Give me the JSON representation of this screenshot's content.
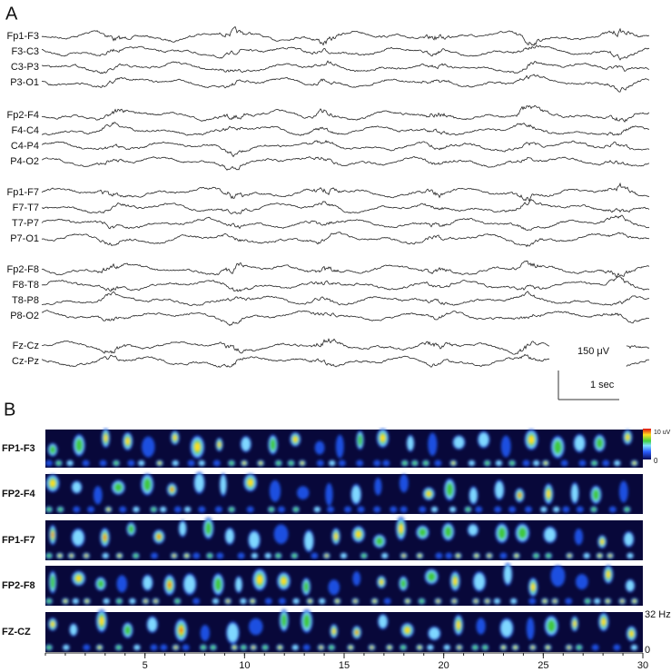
{
  "panel_a": {
    "label": "A",
    "groups": [
      [
        "Fp1-F3",
        "F3-C3",
        "C3-P3",
        "P3-O1"
      ],
      [
        "Fp2-F4",
        "F4-C4",
        "C4-P4",
        "P4-O2"
      ],
      [
        "Fp1-F7",
        "F7-T7",
        "T7-P7",
        "P7-O1"
      ],
      [
        "Fp2-F8",
        "F8-T8",
        "T8-P8",
        "P8-O2"
      ],
      [
        "Fz-Cz",
        "Cz-Pz"
      ]
    ],
    "amplitude_scale": "150 μV",
    "time_scale": "1 sec"
  },
  "panel_b": {
    "label": "B",
    "channels": [
      "FP1-F3",
      "FP2-F4",
      "FP1-F7",
      "FP2-F8",
      "FZ-CZ"
    ],
    "colorbar_max": "10 uV",
    "colorbar_min": "0",
    "freq_max": "32 Hz",
    "freq_min": "0",
    "xlim": [
      0,
      30
    ],
    "xticks": [
      5,
      10,
      15,
      20,
      25,
      30
    ]
  }
}
